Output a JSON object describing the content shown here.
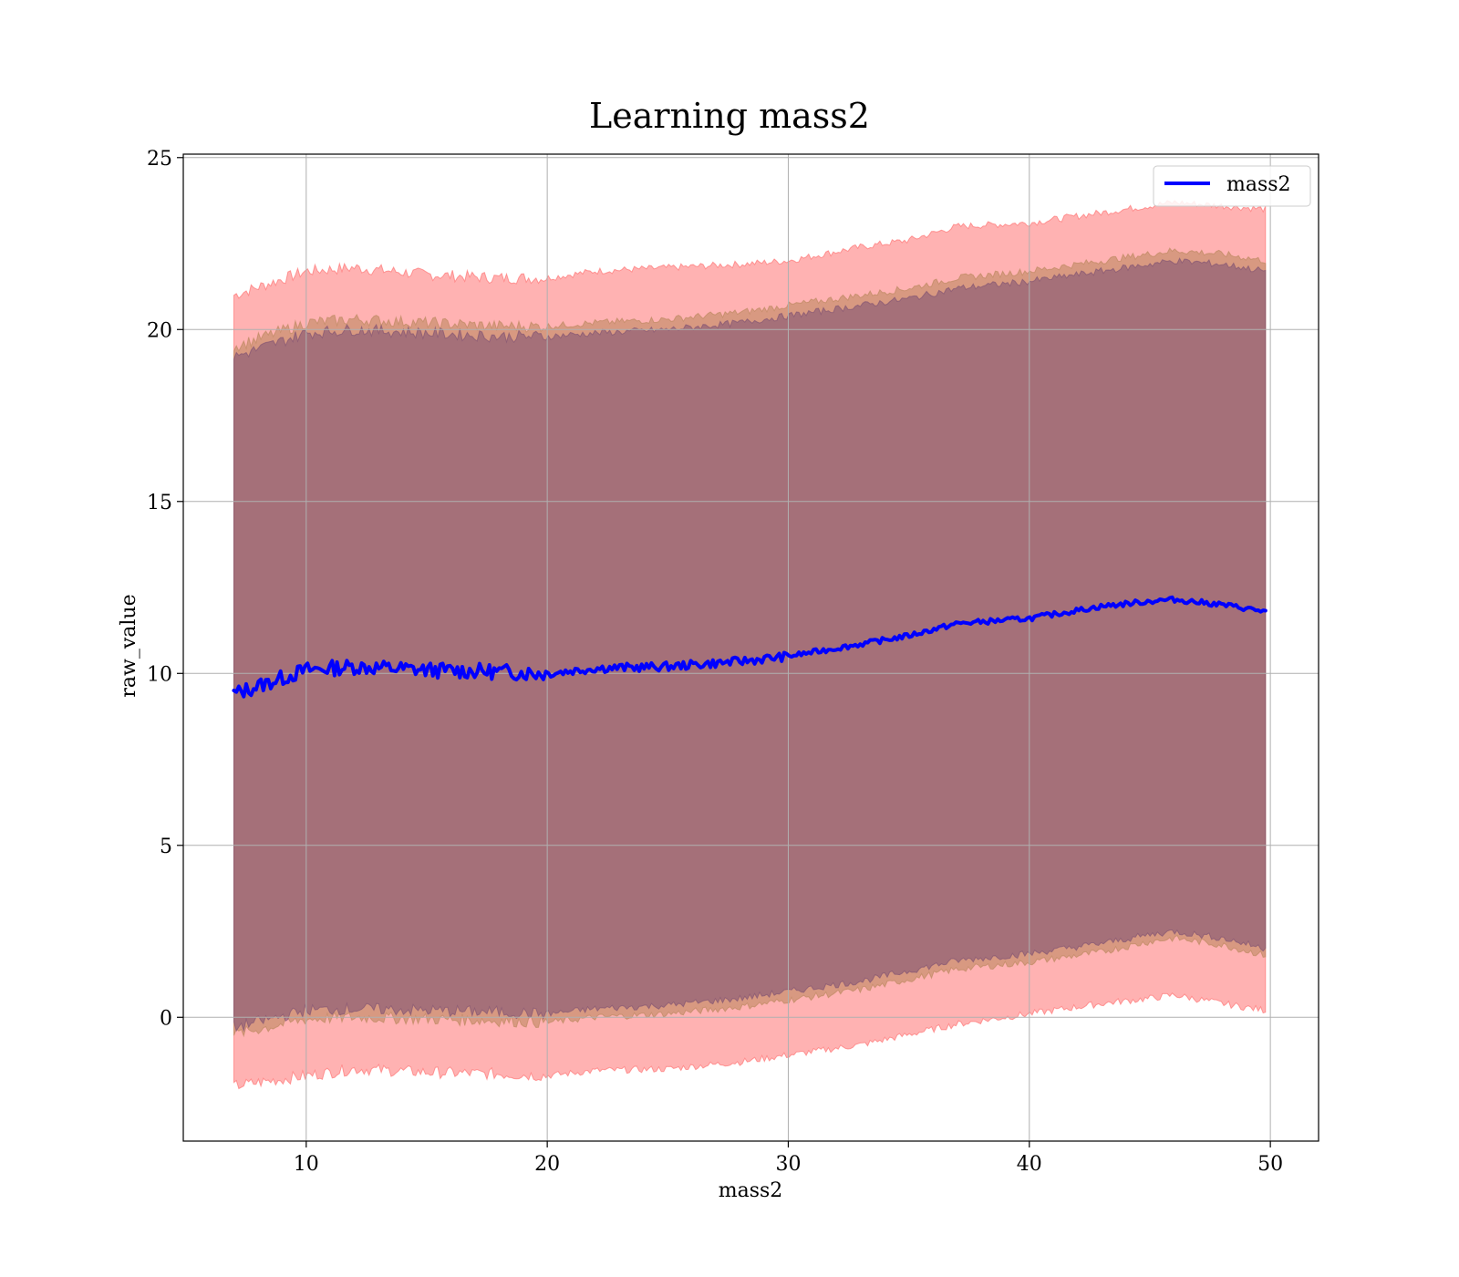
{
  "chart_data": {
    "type": "area",
    "title": "Learning mass2",
    "xlabel": "mass2",
    "ylabel": "raw_value",
    "xlim": [
      4.9,
      52.0
    ],
    "ylim": [
      -3.6,
      25.1
    ],
    "xticks": [
      "10",
      "20",
      "30",
      "40",
      "50"
    ],
    "yticks": [
      "0",
      "5",
      "10",
      "15",
      "20",
      "25"
    ],
    "grid": true,
    "legend": {
      "position": "top-right",
      "entries": [
        "mass2"
      ]
    },
    "x_range": [
      7.0,
      49.8
    ],
    "series": [
      {
        "name": "mass2",
        "kind": "line",
        "color": "#0000ff",
        "x": [
          7.0,
          10,
          12,
          15,
          18,
          20,
          22,
          25,
          28,
          30,
          33,
          35,
          37,
          40,
          43,
          45,
          46,
          48,
          49.8
        ],
        "y": [
          9.4,
          10.1,
          10.2,
          10.1,
          10.05,
          10.0,
          10.15,
          10.2,
          10.35,
          10.5,
          10.85,
          11.1,
          11.45,
          11.6,
          11.95,
          12.1,
          12.15,
          12.0,
          11.8
        ]
      }
    ],
    "bands": [
      {
        "role": "outer band",
        "color": "#ff6666",
        "x": [
          7.0,
          10,
          12,
          15,
          18,
          20,
          22,
          25,
          28,
          30,
          33,
          35,
          37,
          40,
          43,
          45,
          46,
          48,
          49.8
        ],
        "lower": [
          -2.0,
          -1.7,
          -1.5,
          -1.6,
          -1.65,
          -1.7,
          -1.55,
          -1.5,
          -1.3,
          -1.1,
          -0.8,
          -0.5,
          -0.2,
          0.1,
          0.4,
          0.55,
          0.65,
          0.4,
          0.2
        ],
        "upper": [
          21.0,
          21.7,
          21.8,
          21.6,
          21.5,
          21.5,
          21.7,
          21.8,
          21.9,
          22.0,
          22.4,
          22.6,
          23.0,
          23.1,
          23.4,
          23.6,
          23.7,
          23.6,
          23.5
        ]
      },
      {
        "role": "middle band",
        "color": "#b8855a",
        "x": [
          7.0,
          10,
          12,
          15,
          18,
          20,
          22,
          25,
          28,
          30,
          33,
          35,
          37,
          40,
          43,
          45,
          46,
          48,
          49.8
        ],
        "lower": [
          -0.5,
          -0.05,
          0.0,
          -0.05,
          -0.1,
          -0.15,
          0.0,
          0.1,
          0.3,
          0.5,
          0.8,
          1.1,
          1.4,
          1.6,
          1.9,
          2.2,
          2.3,
          2.1,
          1.8
        ],
        "upper": [
          19.5,
          20.2,
          20.3,
          20.2,
          20.1,
          20.1,
          20.2,
          20.3,
          20.5,
          20.7,
          21.0,
          21.2,
          21.5,
          21.7,
          22.0,
          22.2,
          22.3,
          22.2,
          22.0
        ]
      },
      {
        "role": "inner band",
        "color": "#7b4f72",
        "x": [
          7.0,
          10,
          12,
          15,
          18,
          20,
          22,
          25,
          28,
          30,
          33,
          35,
          37,
          40,
          43,
          45,
          46,
          48,
          49.8
        ],
        "lower": [
          -0.3,
          0.2,
          0.25,
          0.2,
          0.15,
          0.1,
          0.25,
          0.35,
          0.55,
          0.75,
          1.05,
          1.35,
          1.65,
          1.85,
          2.15,
          2.4,
          2.5,
          2.3,
          2.0
        ],
        "upper": [
          19.2,
          19.9,
          20.0,
          19.9,
          19.8,
          19.8,
          19.9,
          20.0,
          20.2,
          20.4,
          20.7,
          20.9,
          21.2,
          21.4,
          21.7,
          21.9,
          22.0,
          21.9,
          21.7
        ]
      }
    ]
  }
}
